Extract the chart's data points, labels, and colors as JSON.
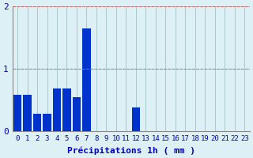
{
  "values": [
    0.58,
    0.58,
    0.28,
    0.28,
    0.68,
    0.68,
    0.55,
    1.65,
    0.0,
    0.0,
    0.0,
    0.0,
    0.38,
    0.0,
    0.0,
    0.0,
    0.0,
    0.0,
    0.0,
    0.0,
    0.0,
    0.0,
    0.0,
    0.0
  ],
  "hours": [
    0,
    1,
    2,
    3,
    4,
    5,
    6,
    7,
    8,
    9,
    10,
    11,
    12,
    13,
    14,
    15,
    16,
    17,
    18,
    19,
    20,
    21,
    22,
    23
  ],
  "bar_color": "#0033cc",
  "bg_color": "#ddf0f5",
  "grid_color": "#aac8cc",
  "text_color": "#0000bb",
  "xlabel": "Précipitations 1h ( mm )",
  "ylim": [
    0,
    2
  ],
  "yticks": [
    0,
    1,
    2
  ],
  "axis_fontsize": 8,
  "tick_fontsize": 6.5
}
